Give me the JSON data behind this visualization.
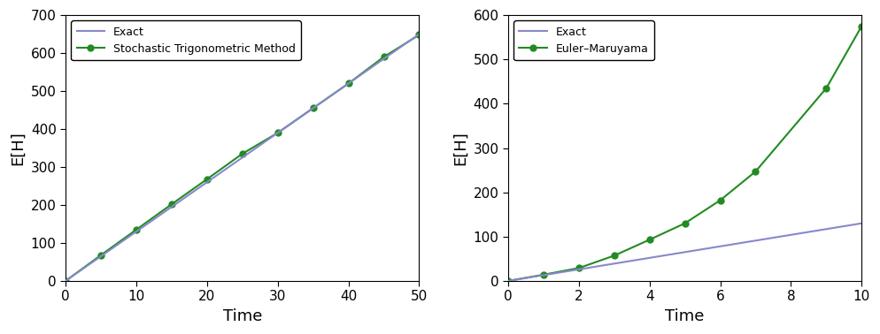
{
  "left": {
    "exact_slope": 13.0,
    "method_x": [
      0,
      5,
      10,
      15,
      20,
      25,
      30,
      35,
      40,
      45,
      50
    ],
    "method_y": [
      0,
      68,
      135,
      202,
      268,
      335,
      390,
      455,
      520,
      590,
      648
    ],
    "xlim": [
      0,
      50
    ],
    "ylim": [
      0,
      700
    ],
    "xticks": [
      0,
      10,
      20,
      30,
      40,
      50
    ],
    "yticks": [
      0,
      100,
      200,
      300,
      400,
      500,
      600,
      700
    ],
    "xlabel": "Time",
    "ylabel": "E[H]",
    "legend_exact": "Exact",
    "legend_method": "Stochastic Trigonometric Method",
    "exact_color": "#8888cc",
    "method_color": "#228B22"
  },
  "right": {
    "exact_slope": 13.0,
    "method_x": [
      0,
      1,
      2,
      3,
      4,
      5,
      6,
      7,
      9,
      10
    ],
    "method_y": [
      0,
      14,
      29,
      57,
      93,
      130,
      182,
      247,
      435,
      575
    ],
    "xlim": [
      0,
      10
    ],
    "ylim": [
      0,
      600
    ],
    "xticks": [
      0,
      2,
      4,
      6,
      8,
      10
    ],
    "yticks": [
      0,
      100,
      200,
      300,
      400,
      500,
      600
    ],
    "xlabel": "Time",
    "ylabel": "E[H]",
    "legend_exact": "Exact",
    "legend_method": "Euler–Maruyama",
    "exact_color": "#8888cc",
    "method_color": "#228B22"
  }
}
